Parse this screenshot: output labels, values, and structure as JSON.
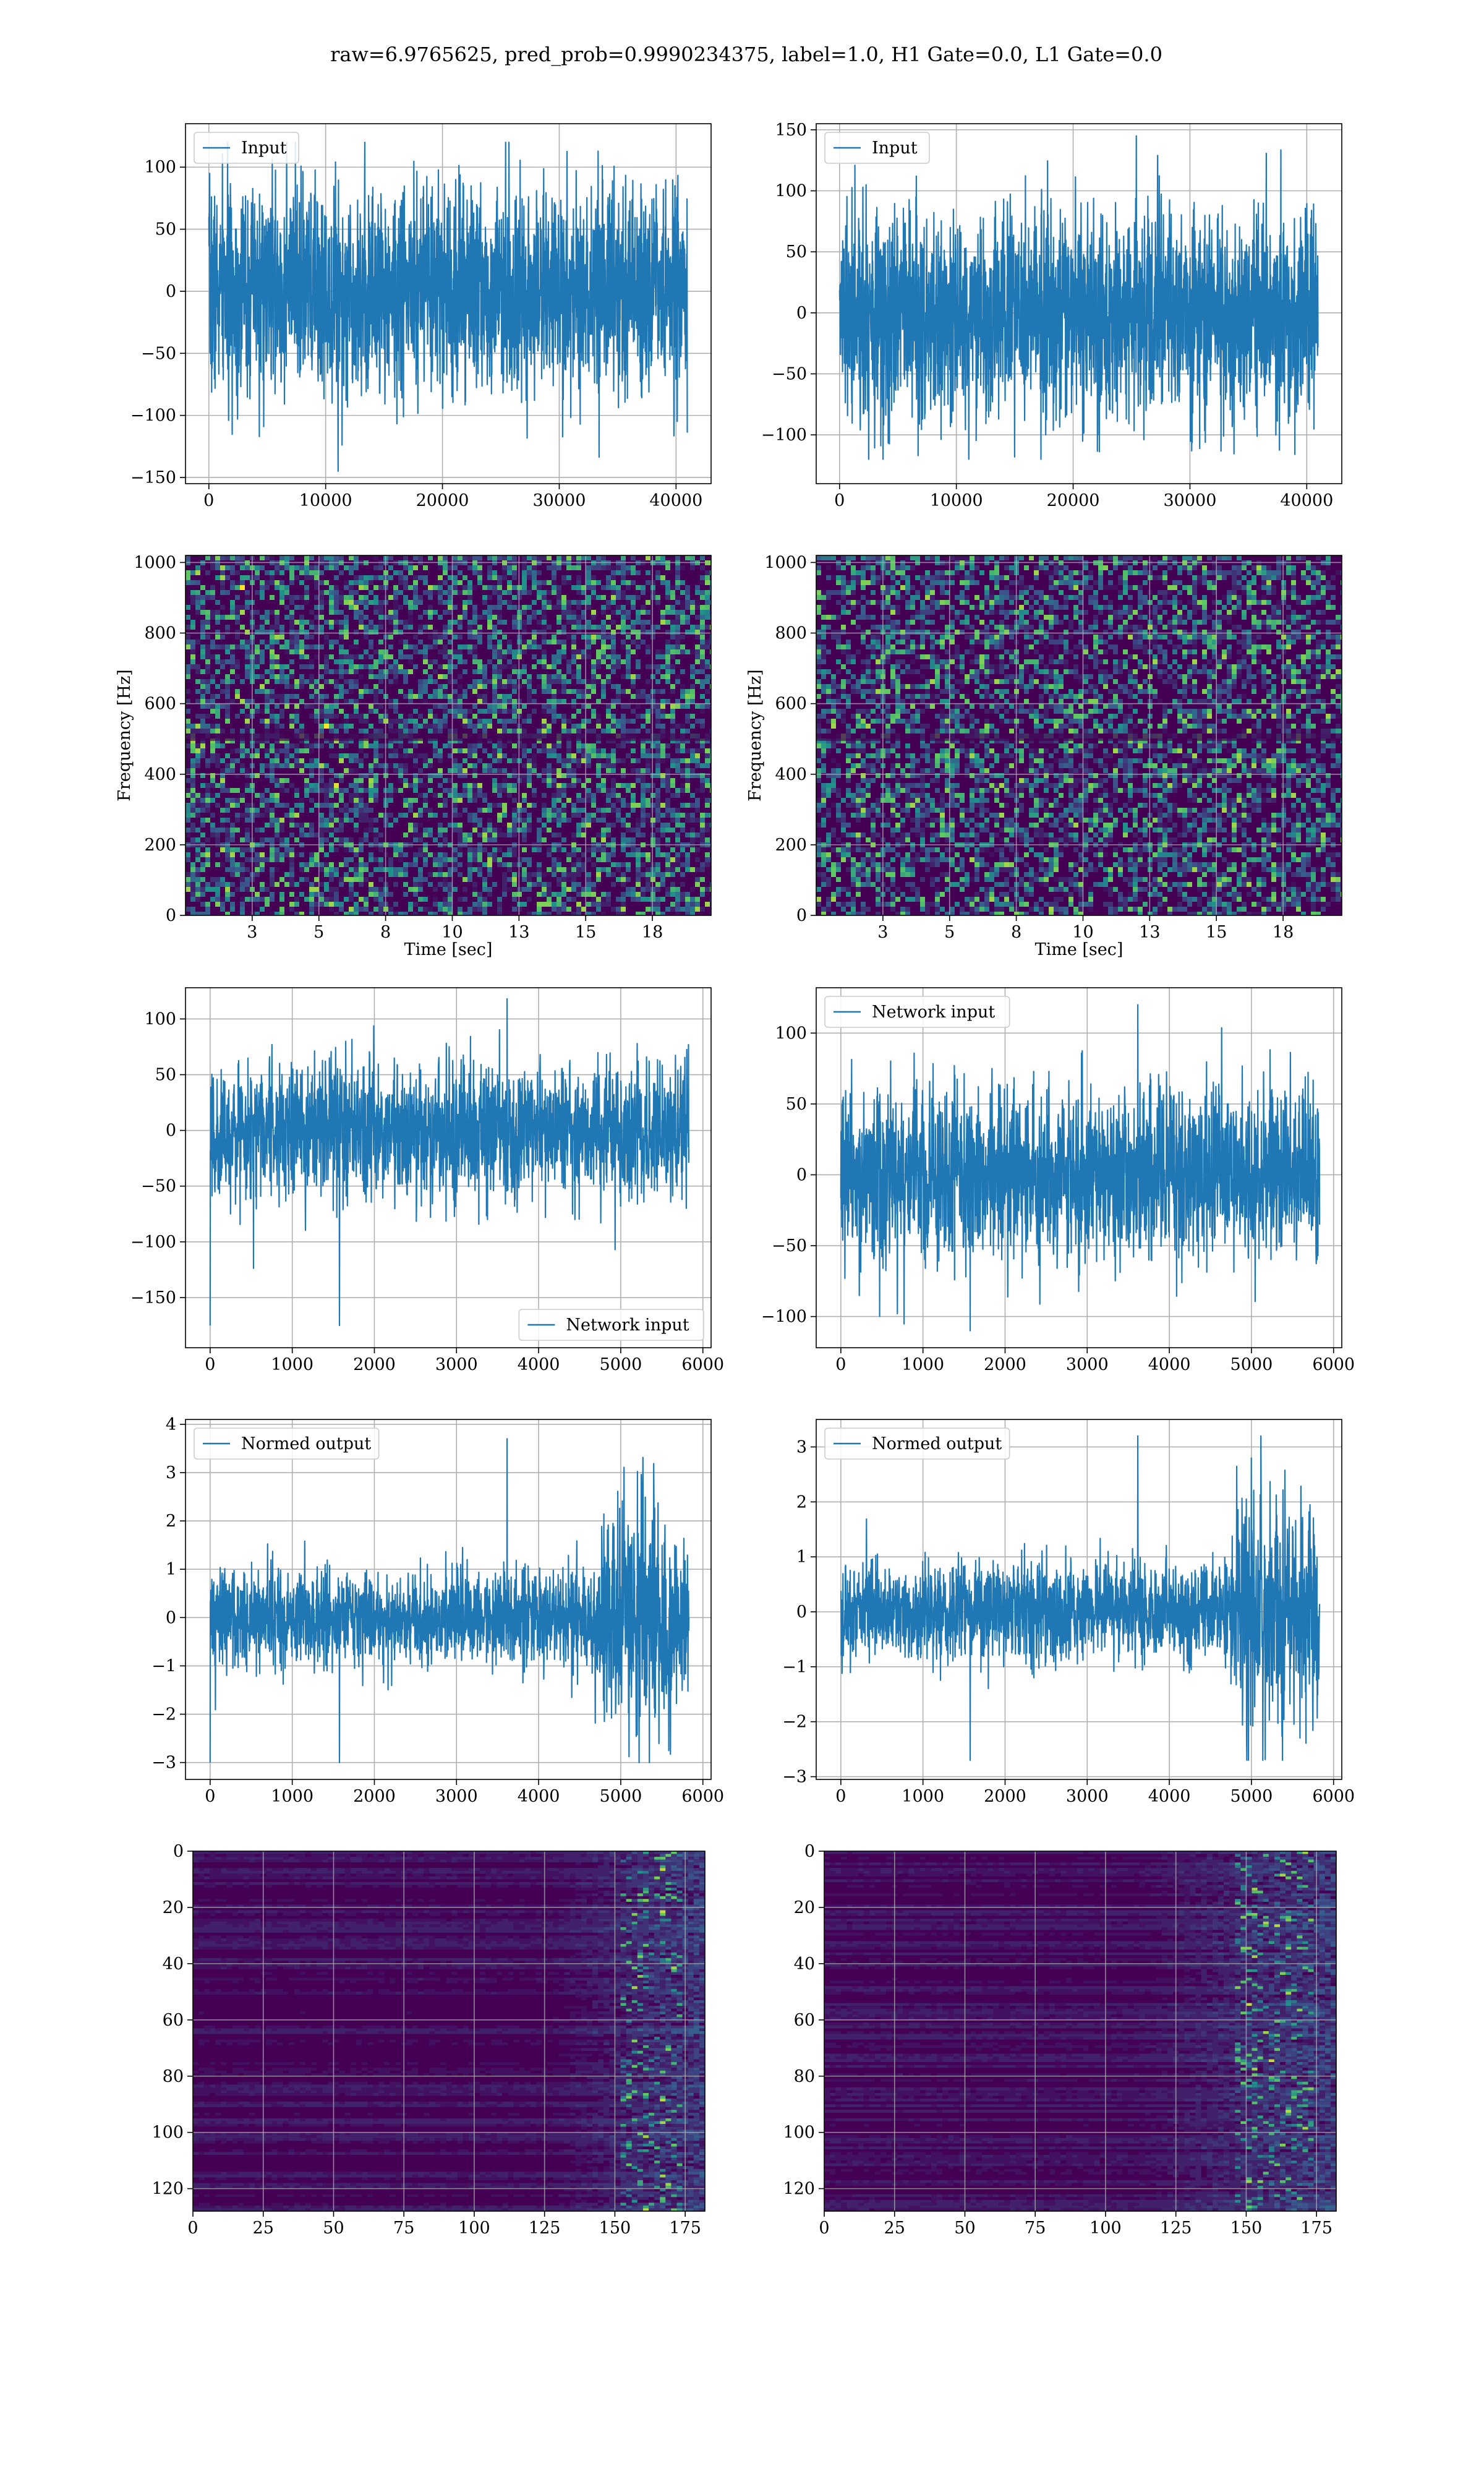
{
  "figure": {
    "title": "raw=6.9765625, pred_prob=0.9990234375, label=1.0, H1 Gate=0.0, L1 Gate=0.0"
  },
  "colors": {
    "line": "#1f77b4",
    "grid": "#b0b0b0",
    "viridis_low": "#440154",
    "viridis_mid": "#21918c",
    "viridis_high": "#fde725"
  },
  "chart_data": [
    {
      "id": "r1c1",
      "type": "line",
      "title": "",
      "xlabel": "",
      "ylabel": "",
      "legend": {
        "entries": [
          "Input"
        ],
        "placement": "upper-left"
      },
      "xlim": [
        -2000,
        43000
      ],
      "ylim": [
        -155,
        135
      ],
      "xticks": [
        0,
        10000,
        20000,
        30000,
        40000
      ],
      "yticks": [
        -150,
        -100,
        -50,
        0,
        50,
        100
      ],
      "grid": true,
      "signal": {
        "x_range": [
          0,
          40960
        ],
        "envelope": [
          [
            0,
            75
          ],
          [
            40960,
            75
          ]
        ],
        "peak_min": -145,
        "peak_max": 120,
        "n_points": 2400
      }
    },
    {
      "id": "r1c2",
      "type": "line",
      "title": "",
      "xlabel": "",
      "ylabel": "",
      "legend": {
        "entries": [
          "Input"
        ],
        "placement": "upper-left"
      },
      "xlim": [
        -2000,
        43000
      ],
      "ylim": [
        -140,
        155
      ],
      "xticks": [
        0,
        10000,
        20000,
        30000,
        40000
      ],
      "yticks": [
        -100,
        -50,
        0,
        50,
        100,
        150
      ],
      "grid": true,
      "signal": {
        "x_range": [
          0,
          40960
        ],
        "envelope": [
          [
            0,
            75
          ],
          [
            40960,
            75
          ]
        ],
        "peak_min": -120,
        "peak_max": 145,
        "n_points": 2400
      }
    },
    {
      "id": "r2c1",
      "type": "heatmap",
      "title": "",
      "xlabel": "Time [sec]",
      "ylabel": "Frequency [Hz]",
      "xlim": [
        0,
        19.7
      ],
      "ylim": [
        0,
        1020
      ],
      "xticks": [
        2.5,
        5.0,
        7.5,
        10.0,
        12.5,
        15.0,
        17.5
      ],
      "yticks": [
        0,
        200,
        400,
        600,
        800,
        1000
      ],
      "grid": true,
      "colormap": "viridis",
      "texture": {
        "kind": "speckle",
        "density": 0.55
      }
    },
    {
      "id": "r2c2",
      "type": "heatmap",
      "title": "",
      "xlabel": "Time [sec]",
      "ylabel": "Frequency [Hz]",
      "xlim": [
        0,
        19.7
      ],
      "ylim": [
        0,
        1020
      ],
      "xticks": [
        2.5,
        5.0,
        7.5,
        10.0,
        12.5,
        15.0,
        17.5
      ],
      "yticks": [
        0,
        200,
        400,
        600,
        800,
        1000
      ],
      "grid": true,
      "colormap": "viridis",
      "texture": {
        "kind": "speckle",
        "density": 0.55
      }
    },
    {
      "id": "r3c1",
      "type": "line",
      "title": "",
      "xlabel": "",
      "ylabel": "",
      "legend": {
        "entries": [
          "Network input"
        ],
        "placement": "lower-right"
      },
      "xlim": [
        -300,
        6100
      ],
      "ylim": [
        -195,
        128
      ],
      "xticks": [
        0,
        1000,
        2000,
        3000,
        4000,
        5000,
        6000
      ],
      "yticks": [
        -150,
        -100,
        -50,
        0,
        50,
        100
      ],
      "grid": true,
      "signal": {
        "x_range": [
          0,
          5830
        ],
        "envelope": [
          [
            0,
            55
          ],
          [
            5830,
            55
          ]
        ],
        "peak_min": -175,
        "peak_max": 118,
        "n_points": 2000
      }
    },
    {
      "id": "r3c2",
      "type": "line",
      "title": "",
      "xlabel": "",
      "ylabel": "",
      "legend": {
        "entries": [
          "Network input"
        ],
        "placement": "upper-left"
      },
      "xlim": [
        -300,
        6100
      ],
      "ylim": [
        -122,
        132
      ],
      "xticks": [
        0,
        1000,
        2000,
        3000,
        4000,
        5000,
        6000
      ],
      "yticks": [
        -100,
        -50,
        0,
        50,
        100
      ],
      "grid": true,
      "signal": {
        "x_range": [
          0,
          5830
        ],
        "envelope": [
          [
            0,
            55
          ],
          [
            5830,
            55
          ]
        ],
        "peak_min": -110,
        "peak_max": 120,
        "n_points": 2000
      }
    },
    {
      "id": "r4c1",
      "type": "line",
      "title": "",
      "xlabel": "",
      "ylabel": "",
      "legend": {
        "entries": [
          "Normed output"
        ],
        "placement": "upper-left"
      },
      "xlim": [
        -300,
        6100
      ],
      "ylim": [
        -3.35,
        4.1
      ],
      "xticks": [
        0,
        1000,
        2000,
        3000,
        4000,
        5000,
        6000
      ],
      "yticks": [
        -3,
        -2,
        -1,
        0,
        1,
        2,
        3,
        4
      ],
      "grid": true,
      "signal": {
        "x_range": [
          0,
          5830
        ],
        "envelope": [
          [
            0,
            0.9
          ],
          [
            4600,
            0.9
          ],
          [
            4800,
            2.0
          ],
          [
            5400,
            2.4
          ],
          [
            5830,
            1.6
          ]
        ],
        "peak_min": -3.0,
        "peak_max": 3.7,
        "n_points": 2000
      }
    },
    {
      "id": "r4c2",
      "type": "line",
      "title": "",
      "xlabel": "",
      "ylabel": "",
      "legend": {
        "entries": [
          "Normed output"
        ],
        "placement": "upper-left"
      },
      "xlim": [
        -300,
        6100
      ],
      "ylim": [
        -3.05,
        3.5
      ],
      "xticks": [
        0,
        1000,
        2000,
        3000,
        4000,
        5000,
        6000
      ],
      "yticks": [
        -3,
        -2,
        -1,
        0,
        1,
        2,
        3
      ],
      "grid": true,
      "signal": {
        "x_range": [
          0,
          5830
        ],
        "envelope": [
          [
            0,
            0.8
          ],
          [
            4600,
            0.8
          ],
          [
            4800,
            1.8
          ],
          [
            5400,
            2.2
          ],
          [
            5830,
            1.5
          ]
        ],
        "peak_min": -2.7,
        "peak_max": 3.2,
        "n_points": 2000
      }
    },
    {
      "id": "r5c1",
      "type": "heatmap",
      "title": "",
      "xlabel": "",
      "ylabel": "",
      "xlim": [
        0,
        182
      ],
      "ylim": [
        128,
        0
      ],
      "xticks": [
        0,
        25,
        50,
        75,
        100,
        125,
        150,
        175
      ],
      "yticks": [
        0,
        20,
        40,
        60,
        80,
        100,
        120
      ],
      "grid": true,
      "colormap": "viridis",
      "texture": {
        "kind": "stripes",
        "activity_start": 125,
        "hot_range": [
          152,
          172
        ]
      }
    },
    {
      "id": "r5c2",
      "type": "heatmap",
      "title": "",
      "xlabel": "",
      "ylabel": "",
      "xlim": [
        0,
        182
      ],
      "ylim": [
        128,
        0
      ],
      "xticks": [
        0,
        25,
        50,
        75,
        100,
        125,
        150,
        175
      ],
      "yticks": [
        0,
        20,
        40,
        60,
        80,
        100,
        120
      ],
      "grid": true,
      "colormap": "viridis",
      "texture": {
        "kind": "stripes",
        "activity_start": 110,
        "hot_range": [
          145,
          172
        ]
      }
    }
  ]
}
